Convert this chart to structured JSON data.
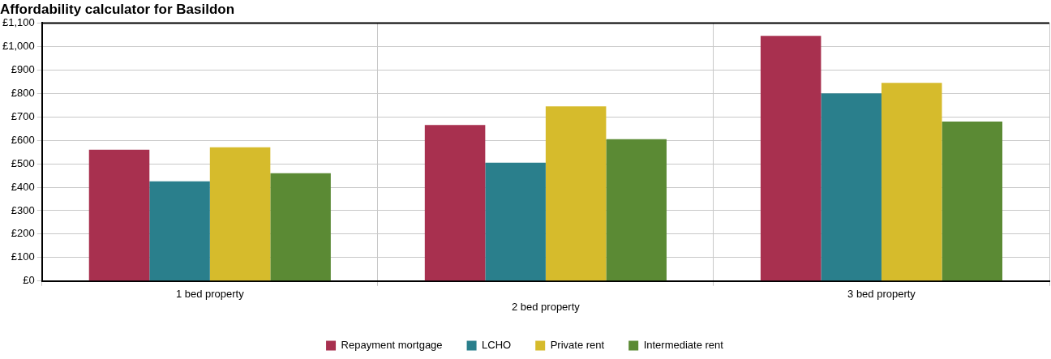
{
  "chart_data": {
    "type": "bar",
    "title": "Affordability calculator for Basildon",
    "categories": [
      "1 bed property",
      "2 bed property",
      "3 bed property"
    ],
    "series": [
      {
        "name": "Repayment mortgage",
        "color": "#a8304f",
        "values": [
          560,
          665,
          1045
        ]
      },
      {
        "name": "LCHO",
        "color": "#2a7f8c",
        "values": [
          425,
          505,
          800
        ]
      },
      {
        "name": "Private rent",
        "color": "#d6bb2c",
        "values": [
          570,
          745,
          845
        ]
      },
      {
        "name": "Intermediate rent",
        "color": "#5b8a34",
        "values": [
          460,
          605,
          680
        ]
      }
    ],
    "ylim": [
      0,
      1100
    ],
    "yticks": [
      {
        "value": 0,
        "label": "£0"
      },
      {
        "value": 100,
        "label": "£100"
      },
      {
        "value": 200,
        "label": "£200"
      },
      {
        "value": 300,
        "label": "£300"
      },
      {
        "value": 400,
        "label": "£400"
      },
      {
        "value": 500,
        "label": "£500"
      },
      {
        "value": 600,
        "label": "£600"
      },
      {
        "value": 700,
        "label": "£700"
      },
      {
        "value": 800,
        "label": "£800"
      },
      {
        "value": 900,
        "label": "£900"
      },
      {
        "value": 1000,
        "label": "£1,000"
      },
      {
        "value": 1100,
        "label": "£1,100"
      }
    ],
    "grid": true,
    "legend": "bottom"
  }
}
